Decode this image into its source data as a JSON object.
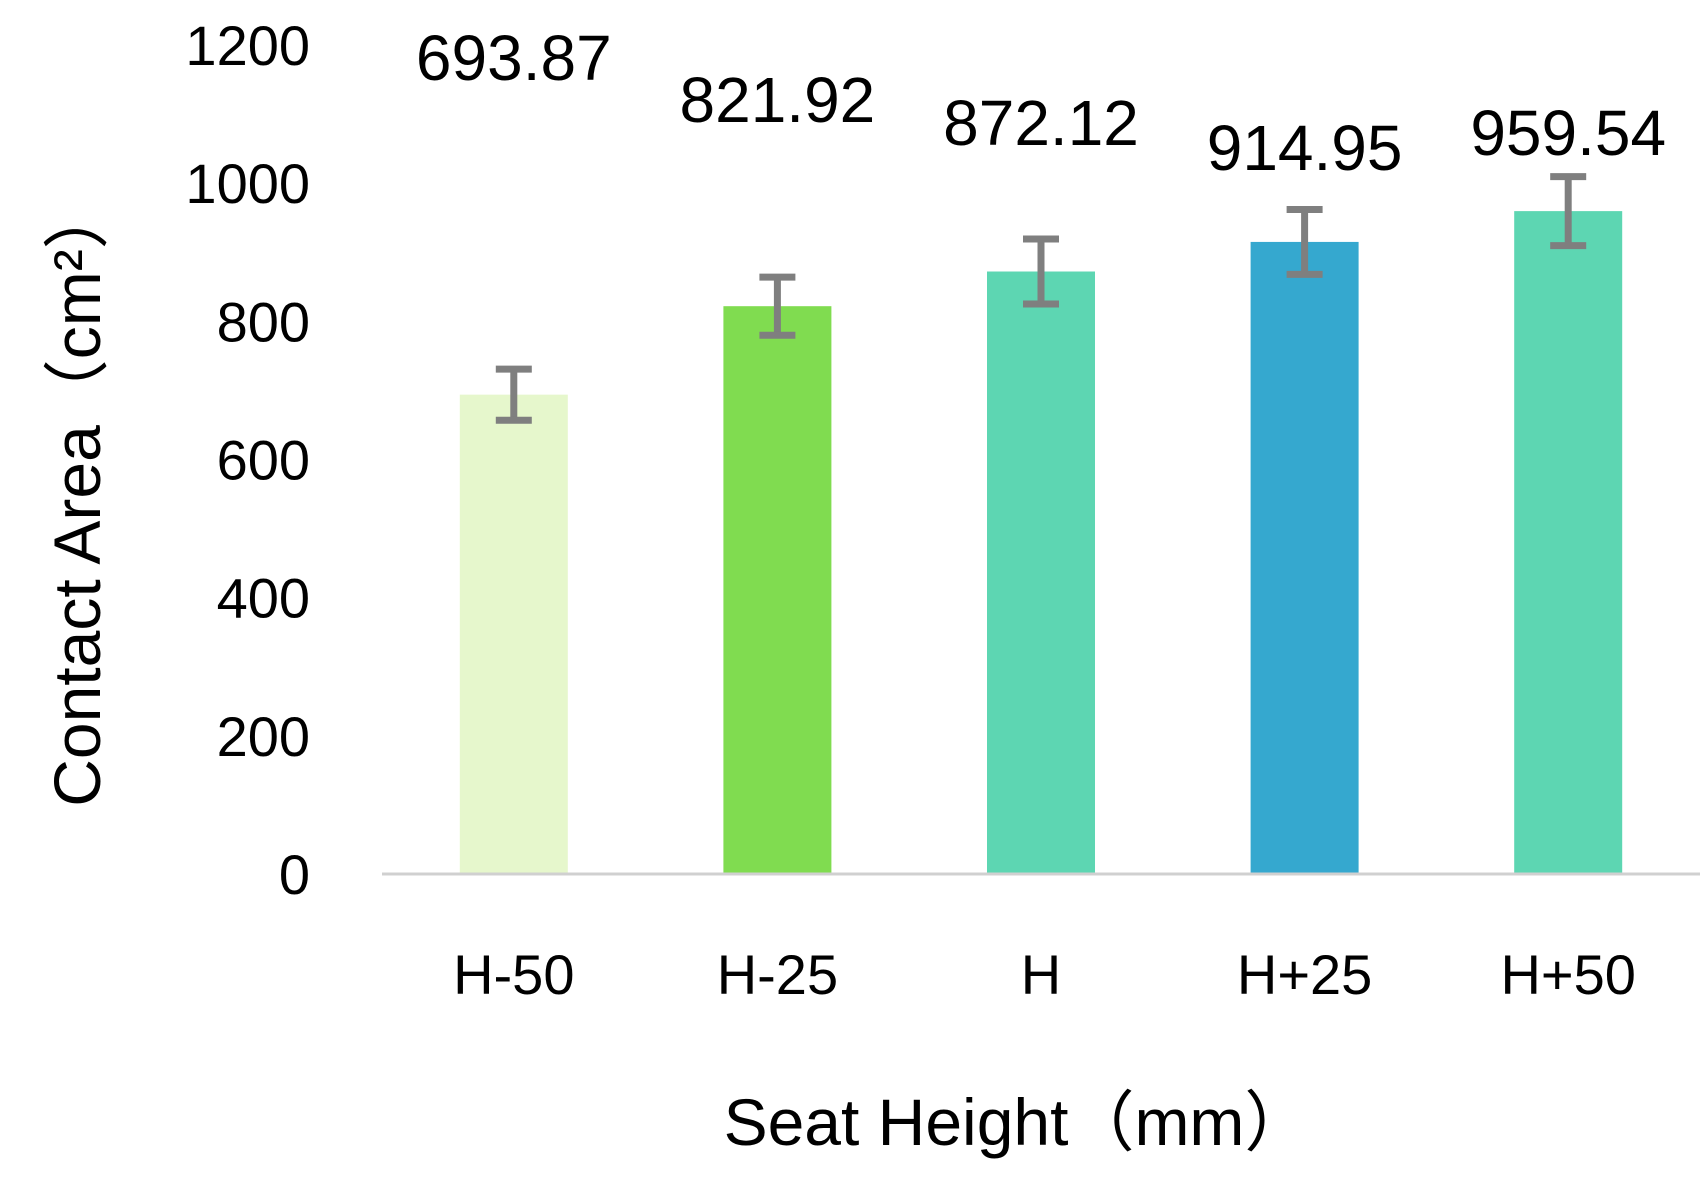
{
  "chart_data": {
    "type": "bar",
    "xlabel": "Seat Height（mm）",
    "ylabel": "Contact Area（cm²）",
    "ylim": [
      0,
      1200
    ],
    "yticks": [
      0,
      200,
      400,
      600,
      800,
      1000,
      1200
    ],
    "ytick_labels": [
      "0",
      "200",
      "400",
      "600",
      "800",
      "1000",
      "1200"
    ],
    "categories": [
      "H-50",
      "H-25",
      "H",
      "H+25",
      "H+50"
    ],
    "values": [
      693.87,
      821.92,
      872.12,
      914.95,
      959.54
    ],
    "data_labels": [
      "693.87",
      "821.92",
      "872.12",
      "914.95",
      "959.54"
    ],
    "error": [
      37,
      42,
      47,
      47,
      50
    ],
    "colors": [
      "#e6f7cc",
      "#80dc50",
      "#5dd6b2",
      "#35a8cf",
      "#5dd6b2"
    ],
    "error_bar_color": "#7f7f7f",
    "axis_line_color": "#d0d0d0",
    "grid": false,
    "legend": "none"
  }
}
